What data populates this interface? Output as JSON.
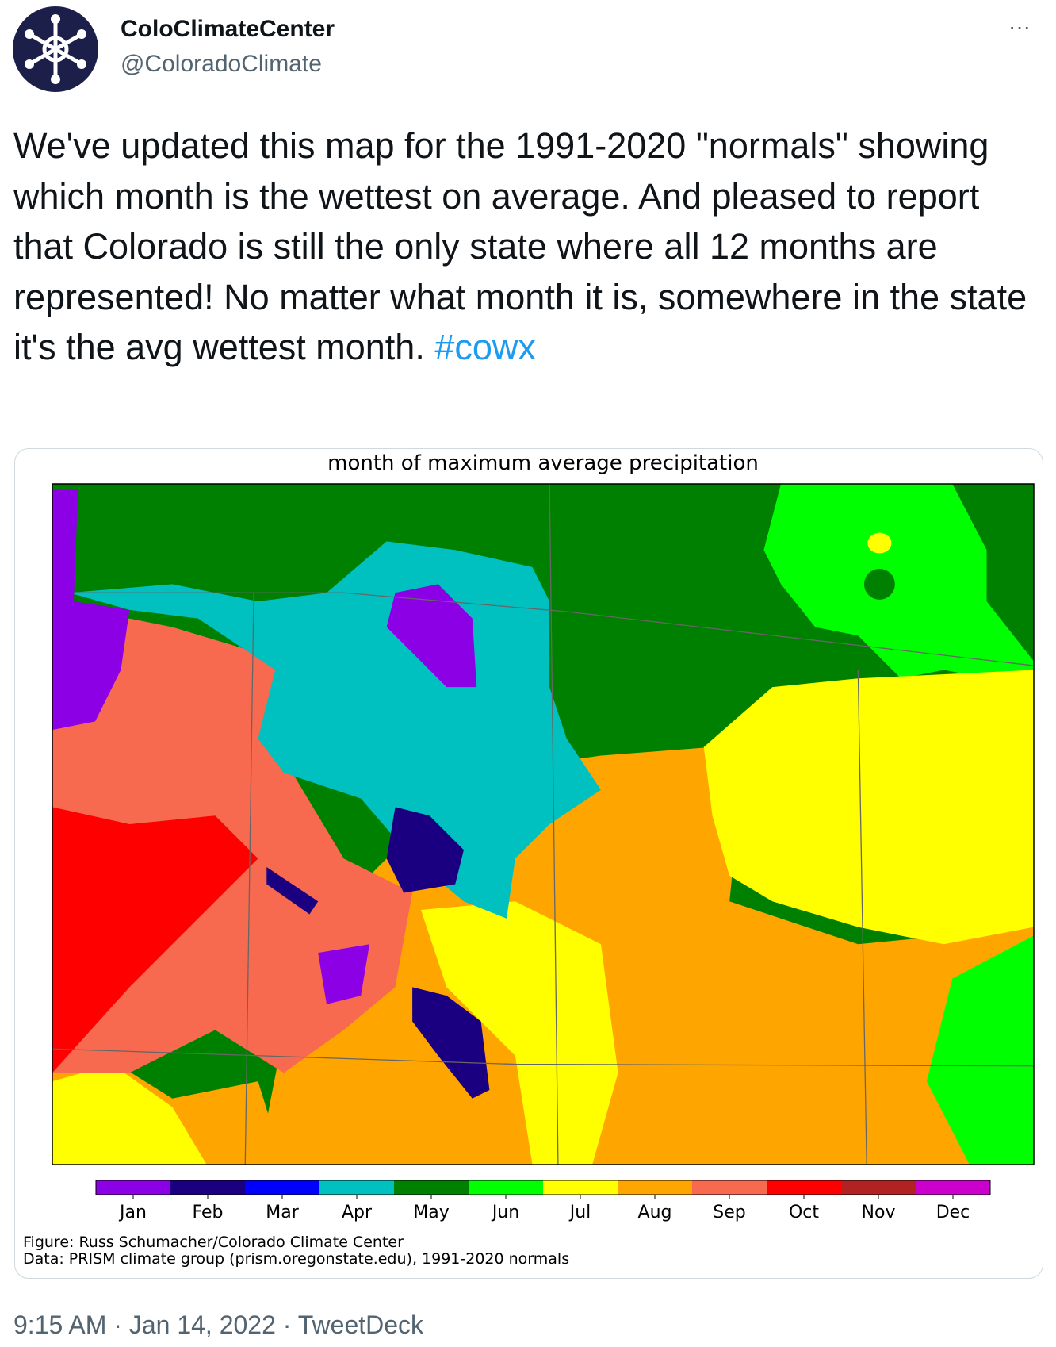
{
  "header": {
    "name": "ColoClimateCenter",
    "handle": "@ColoradoClimate",
    "more": "···"
  },
  "tweet": {
    "text": "We've updated this map for the 1991-2020 \"normals\" showing which month is the wettest on average. And pleased to report that Colorado is still the only state where all 12 months are represented! No matter what month it is, somewhere in the state it's the avg wettest month.",
    "hashtag": "#cowx"
  },
  "figure": {
    "title": "month of maximum average precipitation",
    "months": [
      "Jan",
      "Feb",
      "Mar",
      "Apr",
      "May",
      "Jun",
      "Jul",
      "Aug",
      "Sep",
      "Oct",
      "Nov",
      "Dec"
    ],
    "credits": [
      "Figure: Russ Schumacher/Colorado Climate Center",
      "Data: PRISM climate group (prism.oregonstate.edu), 1991-2020 normals"
    ]
  },
  "footer": {
    "meta": "9:15 AM · Jan 14, 2022 · TweetDeck"
  }
}
